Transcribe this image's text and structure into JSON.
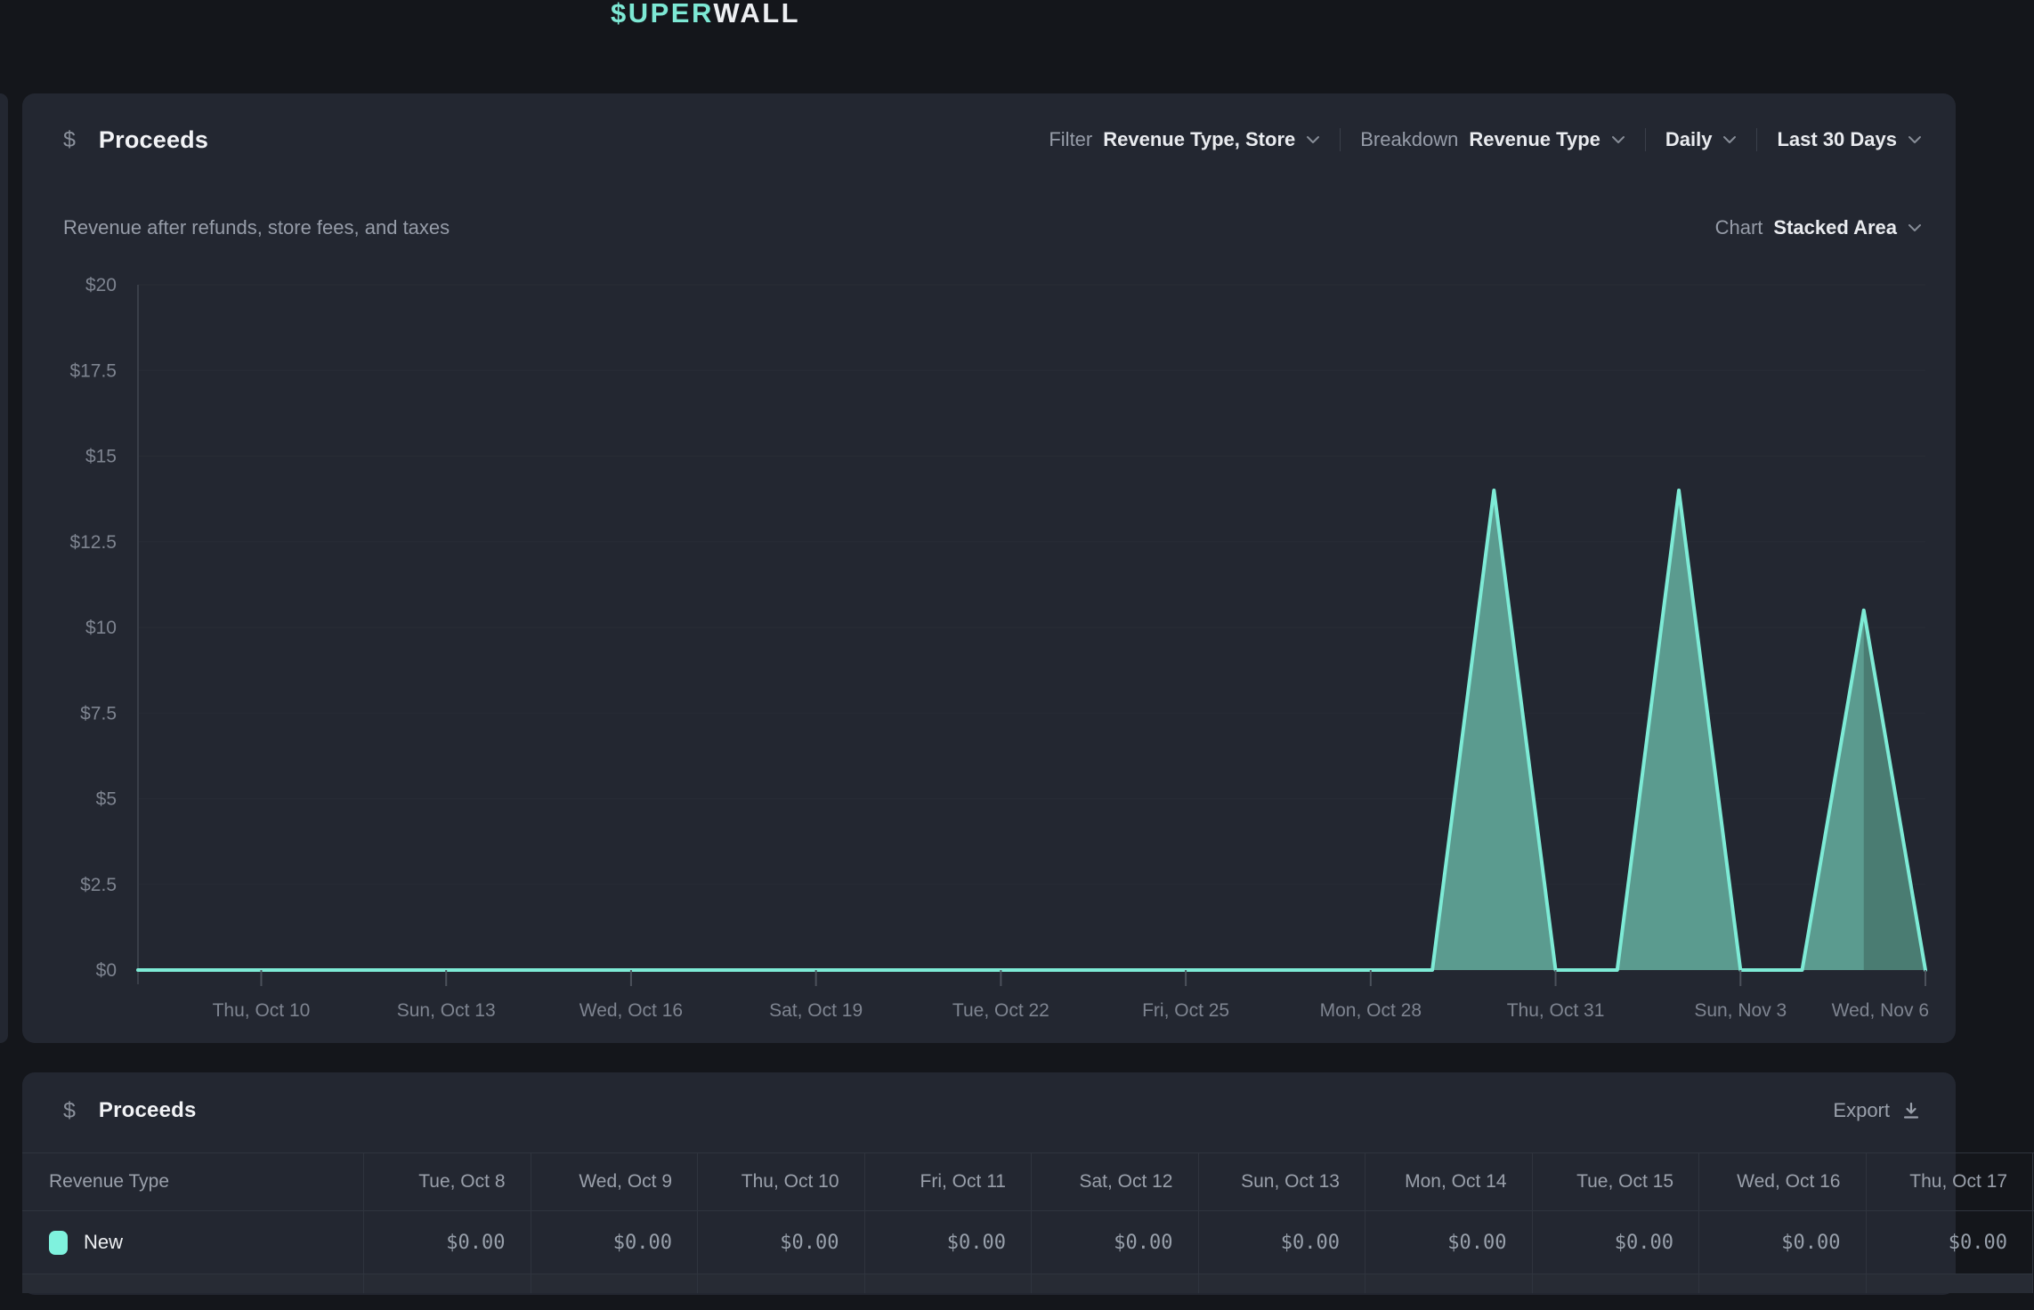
{
  "logo": {
    "text_accent": "$UPER",
    "text_plain": "WALL"
  },
  "chart_panel": {
    "currency_icon": "$",
    "title": "Proceeds",
    "subtitle": "Revenue after refunds, store fees, and taxes",
    "controls": {
      "filter_label": "Filter",
      "filter_value": "Revenue Type, Store",
      "breakdown_label": "Breakdown",
      "breakdown_value": "Revenue Type",
      "granularity_value": "Daily",
      "date_range_value": "Last 30 Days",
      "chart_label": "Chart",
      "chart_type_value": "Stacked Area"
    }
  },
  "chart_data": {
    "type": "area",
    "stacking": "stacked",
    "title": "Proceeds",
    "ylim": [
      0,
      20
    ],
    "y_tick_labels": [
      "$20",
      "$17.5",
      "$15",
      "$12.5",
      "$10",
      "$7.5",
      "$5",
      "$2.5",
      "$0"
    ],
    "x_range": [
      "Tue, Oct 8",
      "Wed, Nov 6"
    ],
    "x_ticks": [
      {
        "label": "Thu, Oct 10",
        "day_index": 2
      },
      {
        "label": "Sun, Oct 13",
        "day_index": 5
      },
      {
        "label": "Wed, Oct 16",
        "day_index": 8
      },
      {
        "label": "Sat, Oct 19",
        "day_index": 11
      },
      {
        "label": "Tue, Oct 22",
        "day_index": 14
      },
      {
        "label": "Fri, Oct 25",
        "day_index": 17
      },
      {
        "label": "Mon, Oct 28",
        "day_index": 20
      },
      {
        "label": "Thu, Oct 31",
        "day_index": 23
      },
      {
        "label": "Sun, Nov 3",
        "day_index": 26
      },
      {
        "label": "Wed, Nov 6",
        "day_index": 29
      }
    ],
    "series": [
      {
        "name": "New",
        "values": [
          0,
          0,
          0,
          0,
          0,
          0,
          0,
          0,
          0,
          0,
          0,
          0,
          0,
          0,
          0,
          0,
          0,
          0,
          0,
          0,
          0,
          0,
          14,
          0,
          0,
          14,
          0,
          0,
          10.5,
          0
        ]
      }
    ],
    "incomplete_last_segment": true,
    "colors": {
      "line": "#7EEBD6",
      "fill": "#5B9B8F",
      "fill_incomplete": "#4A7C72",
      "grid": "#282C35",
      "axis": "#3A3F49",
      "tick": "#4C515B",
      "tick_text": "#7E8490"
    },
    "grid": "horizontal",
    "legend_position": "none"
  },
  "table_panel": {
    "currency_icon": "$",
    "title": "Proceeds",
    "export_label": "Export",
    "columns": [
      "Revenue Type",
      "Tue, Oct 8",
      "Wed, Oct 9",
      "Thu, Oct 10",
      "Fri, Oct 11",
      "Sat, Oct 12",
      "Sun, Oct 13",
      "Mon, Oct 14",
      "Tue, Oct 15",
      "Wed, Oct 16",
      "Thu, Oct 17"
    ],
    "rows": [
      {
        "label": "New",
        "swatch_color": "#7FF2DE",
        "values": [
          "$0.00",
          "$0.00",
          "$0.00",
          "$0.00",
          "$0.00",
          "$0.00",
          "$0.00",
          "$0.00",
          "$0.00",
          "$0.00"
        ]
      }
    ]
  }
}
